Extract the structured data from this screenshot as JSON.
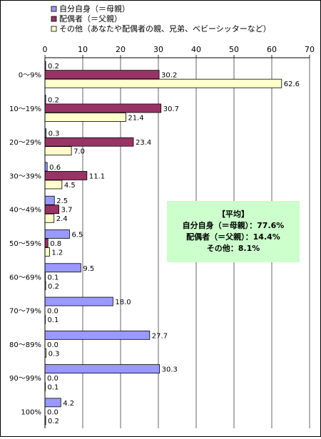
{
  "chart_data": {
    "type": "bar",
    "orientation": "horizontal",
    "categories": [
      "0～9%",
      "10～19%",
      "20～29%",
      "30～39%",
      "40～49%",
      "50～59%",
      "60～69%",
      "70～79%",
      "80～89%",
      "90～99%",
      "100%"
    ],
    "series": [
      {
        "name": "自分自身（＝母親）",
        "color": "#9999ff",
        "values": [
          0.2,
          0.2,
          0.3,
          0.6,
          2.5,
          6.5,
          9.5,
          18.0,
          27.7,
          30.3,
          4.2
        ]
      },
      {
        "name": "配偶者（＝父親）",
        "color": "#993366",
        "values": [
          30.2,
          30.7,
          23.4,
          11.1,
          3.7,
          0.8,
          0.1,
          0.0,
          0.0,
          0.0,
          0.0
        ]
      },
      {
        "name": "その他（あなたや配偶者の親、兄弟、ベビーシッターなど）",
        "color": "#ffffcc",
        "values": [
          62.6,
          21.4,
          7.0,
          4.5,
          2.4,
          1.2,
          0.2,
          0.1,
          0.3,
          0.1,
          0.2
        ]
      }
    ],
    "value_labels": [
      [
        "0.2",
        "0.2",
        "0.3",
        "0.6",
        "2.5",
        "6.5",
        "9.5",
        "18.0",
        "27.7",
        "30.3",
        "4.2"
      ],
      [
        "30.2",
        "30.7",
        "23.4",
        "11.1",
        "3.7",
        "0.8",
        "0.1",
        "0.0",
        "0.0",
        "0.0",
        "0.0"
      ],
      [
        "62.6",
        "21.4",
        "7.0",
        "4.5",
        "2.4",
        "1.2",
        "0.2",
        "0.1",
        "0.3",
        "0.1",
        "0.2"
      ]
    ],
    "xlim": [
      0,
      70
    ],
    "xticks": [
      0,
      10,
      20,
      30,
      40,
      50,
      60,
      70
    ],
    "xlabel": "",
    "ylabel": "",
    "title": "",
    "legend_position": "top-left",
    "grid": "vertical",
    "annotation": {
      "background": "#ccffcc",
      "lines": [
        "【平均】",
        "自分自身（＝母親）：77.6%",
        "配偶者（＝父親）：14.4%",
        "その他：8.1%"
      ]
    }
  }
}
